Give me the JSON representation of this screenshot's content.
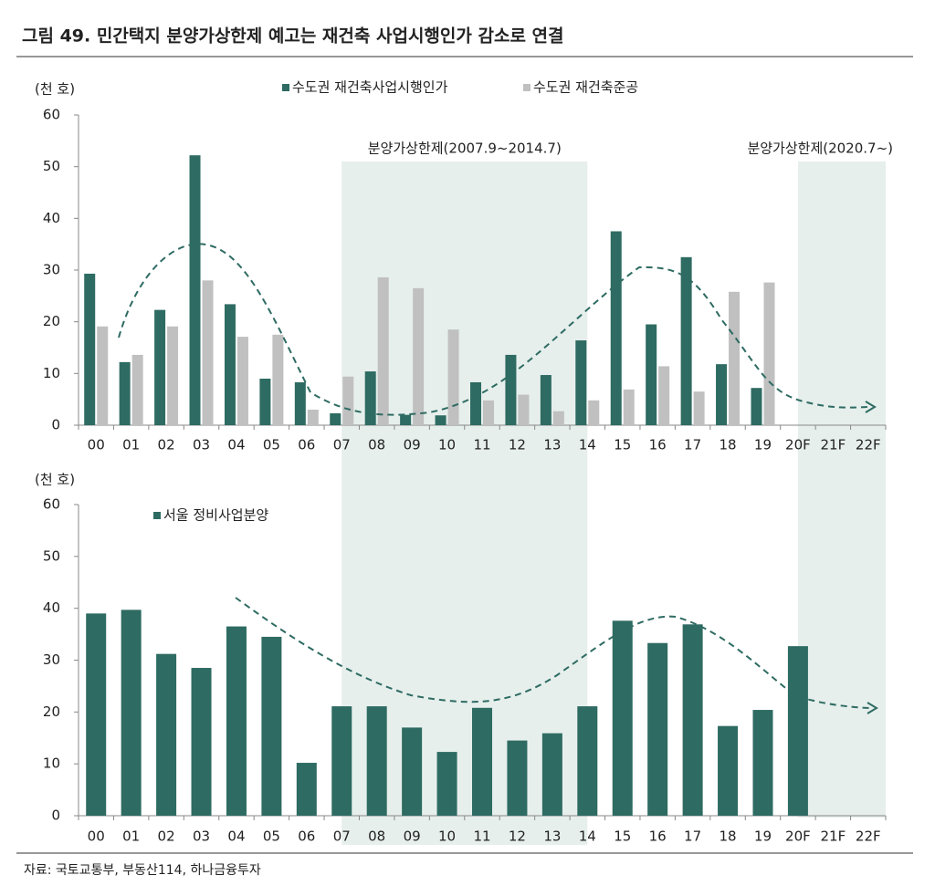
{
  "title": "그림 49. 민간택지 분양가상한제 예고는 재건축 사업시행인가 감소로 연결",
  "source": "자료: 국토교통부, 부동산114, 하나금융투자",
  "chart_data": [
    {
      "type": "bar",
      "y_label": "(천 호)",
      "categories": [
        "00",
        "01",
        "02",
        "03",
        "04",
        "05",
        "06",
        "07",
        "08",
        "09",
        "10",
        "11",
        "12",
        "13",
        "14",
        "15",
        "16",
        "17",
        "18",
        "19",
        "20F",
        "21F",
        "22F"
      ],
      "series": [
        {
          "name": "수도권 재건축사업시행인가",
          "color": "#2e6b62",
          "values": [
            29.3,
            12.2,
            22.3,
            52.2,
            23.4,
            9,
            8.3,
            2.3,
            10.4,
            2,
            1.9,
            8.3,
            13.6,
            9.7,
            16.4,
            37.5,
            19.5,
            32.5,
            11.8,
            7.2,
            null,
            null,
            null
          ]
        },
        {
          "name": "수도권 재건축준공",
          "color": "#c0c0c0",
          "values": [
            19.1,
            13.6,
            19.1,
            28,
            17.1,
            17.5,
            3,
            9.4,
            28.6,
            26.5,
            18.5,
            4.8,
            5.9,
            2.7,
            4.8,
            6.9,
            11.4,
            6.5,
            25.8,
            27.6,
            null,
            null,
            null
          ]
        }
      ],
      "shaded_periods": [
        {
          "label": "분양가상한제(2007.9~2014.7)",
          "start": "07",
          "end": "14"
        },
        {
          "label": "분양가상한제(2020.7~)",
          "start": "20F",
          "end": "22F"
        }
      ],
      "shade_color": "#e6efec",
      "ylim": [
        0,
        60
      ],
      "yticks": [
        0,
        10,
        20,
        30,
        40,
        50,
        60
      ]
    },
    {
      "type": "bar",
      "y_label": "(천 호)",
      "categories": [
        "00",
        "01",
        "02",
        "03",
        "04",
        "05",
        "06",
        "07",
        "08",
        "09",
        "10",
        "11",
        "12",
        "13",
        "14",
        "15",
        "16",
        "17",
        "18",
        "19",
        "20F",
        "21F",
        "22F"
      ],
      "series": [
        {
          "name": "서울 정비사업분양",
          "color": "#2e6b62",
          "values": [
            39,
            39.7,
            31.2,
            28.5,
            36.5,
            34.5,
            10.2,
            21.1,
            21.1,
            17,
            12.3,
            20.8,
            14.5,
            15.9,
            21.1,
            37.6,
            33.3,
            36.9,
            17.3,
            20.4,
            32.7,
            null,
            null
          ]
        }
      ],
      "ylim": [
        0,
        60
      ],
      "yticks": [
        0,
        10,
        20,
        30,
        40,
        50,
        60
      ]
    }
  ]
}
